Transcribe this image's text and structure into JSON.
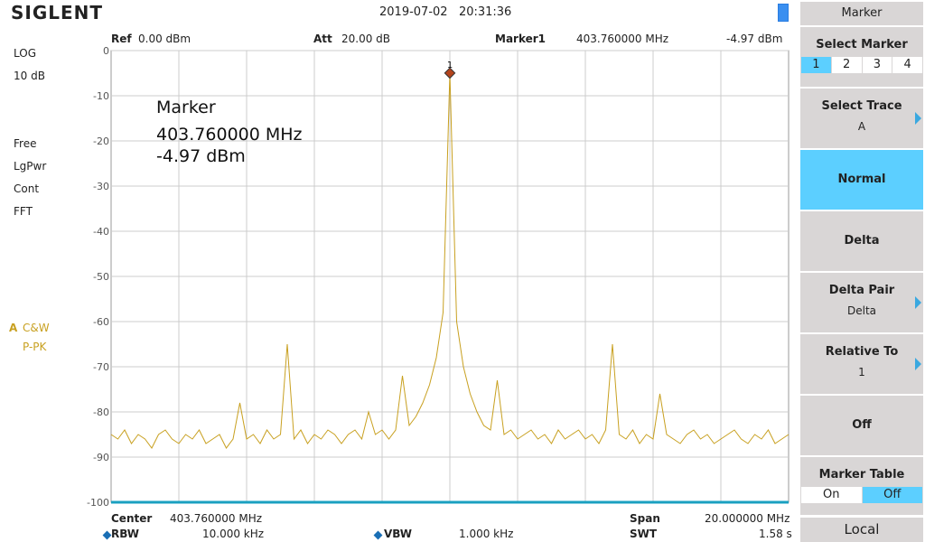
{
  "header": {
    "brand": "SIGLENT",
    "datetime": "2019-07-02   20:31:36"
  },
  "status": {
    "ref_label": "Ref",
    "ref": "0.00 dBm",
    "att_label": "Att",
    "att": "20.00 dB",
    "marker_label": "Marker1",
    "marker_freq": "403.760000 MHz",
    "marker_level": "-4.97 dBm"
  },
  "left_panel": {
    "scale": [
      "LOG",
      "10 dB"
    ],
    "modes": [
      "Free",
      "LgPwr",
      "Cont",
      "FFT"
    ],
    "trace": "A",
    "trace_mode": "C&W",
    "detector": "P-PK"
  },
  "chart_data": {
    "type": "line",
    "color": "#c8a020",
    "ylim": [
      -100,
      0
    ],
    "yticks": [
      0,
      -10,
      -20,
      -30,
      -40,
      -50,
      -60,
      -70,
      -80,
      -90,
      -100
    ],
    "grid": true,
    "marker_label": "1",
    "annotation": [
      "Marker",
      "403.760000 MHz",
      "-4.97 dBm"
    ],
    "values": [
      -85,
      -86,
      -84,
      -87,
      -85,
      -86,
      -88,
      -85,
      -84,
      -86,
      -87,
      -85,
      -86,
      -84,
      -87,
      -86,
      -85,
      -88,
      -86,
      -78,
      -86,
      -85,
      -87,
      -84,
      -86,
      -85,
      -65,
      -86,
      -84,
      -87,
      -85,
      -86,
      -84,
      -85,
      -87,
      -85,
      -84,
      -86,
      -80,
      -85,
      -84,
      -86,
      -84,
      -72,
      -83,
      -81,
      -78,
      -74,
      -68,
      -58,
      -4.97,
      -60,
      -70,
      -76,
      -80,
      -83,
      -84,
      -73,
      -85,
      -84,
      -86,
      -85,
      -84,
      -86,
      -85,
      -87,
      -84,
      -86,
      -85,
      -84,
      -86,
      -85,
      -87,
      -84,
      -65,
      -85,
      -86,
      -84,
      -87,
      -85,
      -86,
      -76,
      -85,
      -86,
      -87,
      -85,
      -84,
      -86,
      -85,
      -87,
      -86,
      -85,
      -84,
      -86,
      -87,
      -85,
      -86,
      -84,
      -87,
      -86,
      -85
    ]
  },
  "footer": {
    "center_label": "Center",
    "center": "403.760000 MHz",
    "rbw_label": "RBW",
    "rbw": "10.000 kHz",
    "vbw_label": "VBW",
    "vbw": "1.000 kHz",
    "span_label": "Span",
    "span": "20.000000 MHz",
    "swt_label": "SWT",
    "swt": "1.58 s"
  },
  "menu": {
    "title": "Marker",
    "select_marker": {
      "label": "Select Marker",
      "options": [
        "1",
        "2",
        "3",
        "4"
      ]
    },
    "select_trace": {
      "label": "Select Trace",
      "value": "A"
    },
    "normal": "Normal",
    "delta": "Delta",
    "delta_pair": {
      "label": "Delta Pair",
      "value": "Delta"
    },
    "relative_to": {
      "label": "Relative To",
      "value": "1"
    },
    "off": "Off",
    "marker_table": {
      "label": "Marker Table",
      "options": [
        "On",
        "Off"
      ]
    },
    "local": "Local"
  }
}
